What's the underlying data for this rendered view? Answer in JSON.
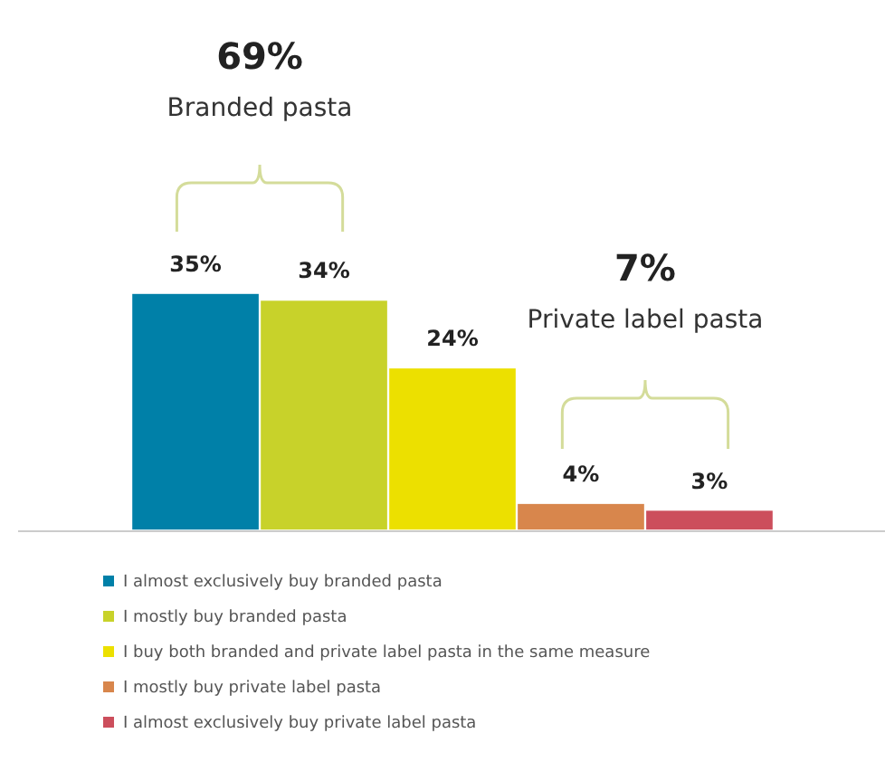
{
  "chart_data": {
    "type": "bar",
    "categories": [
      null
    ],
    "series": [
      {
        "name": "I almost exclusively buy branded pasta",
        "color": "#0080a8",
        "values": [
          35
        ],
        "value_labels": [
          "35%"
        ]
      },
      {
        "name": "I mostly buy branded pasta",
        "color": "#c8d22a",
        "values": [
          34
        ],
        "value_labels": [
          "34%"
        ]
      },
      {
        "name": "I buy both branded and private label pasta in the same measure",
        "color": "#ece000",
        "values": [
          24
        ],
        "value_labels": [
          "24%"
        ]
      },
      {
        "name": "I mostly buy private label pasta",
        "color": "#d8864c",
        "values": [
          4
        ],
        "value_labels": [
          "4%"
        ]
      },
      {
        "name": "I almost exclusively buy private label pasta",
        "color": "#cc4e5c",
        "values": [
          3
        ],
        "value_labels": [
          "3%"
        ]
      }
    ],
    "legend": "bottom",
    "annotations": [
      "69%",
      "Branded pasta",
      "7%",
      "Private label pasta"
    ]
  }
}
